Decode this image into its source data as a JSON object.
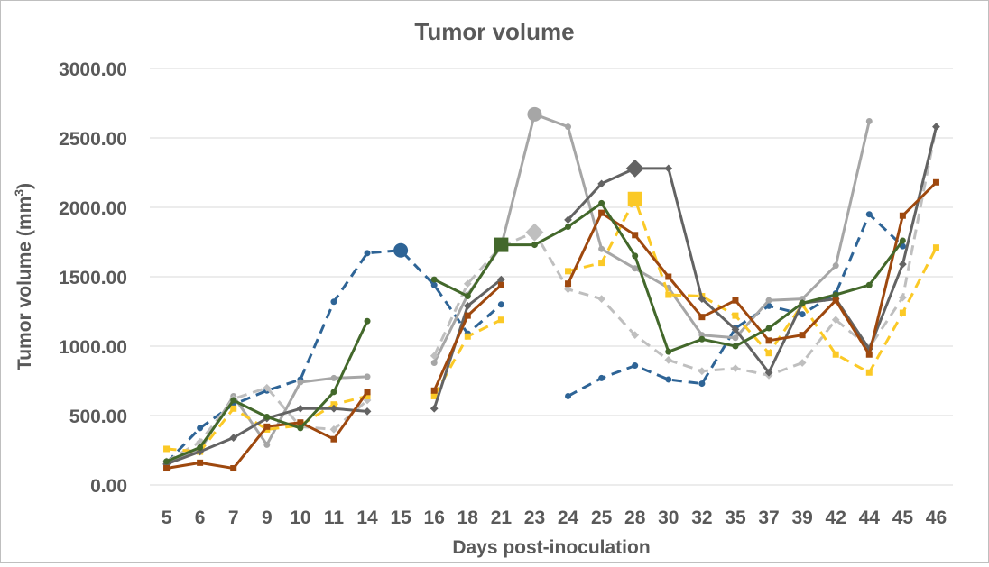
{
  "chart_data": {
    "type": "line",
    "title": "Tumor volume",
    "xlabel": "Days post-inoculation",
    "ylabel_main": "Tumor volume (mm",
    "ylabel_sup": "3",
    "ylabel_close": ")",
    "ylim": [
      0,
      3000
    ],
    "y_ticks": [
      "0.00",
      "500.00",
      "1000.00",
      "1500.00",
      "2000.00",
      "2500.00",
      "3000.00"
    ],
    "categories": [
      "5",
      "6",
      "7",
      "9",
      "10",
      "11",
      "14",
      "15",
      "16",
      "18",
      "21",
      "23",
      "24",
      "25",
      "28",
      "30",
      "32",
      "35",
      "37",
      "39",
      "42",
      "44",
      "45",
      "46"
    ],
    "grid": true,
    "legend": "none",
    "series": [
      {
        "color": "#2e6496",
        "dash": "dashed",
        "marker": "circle",
        "values": [
          160,
          410,
          580,
          680,
          760,
          1320,
          1670,
          1690,
          1440,
          1090,
          1300,
          null,
          640,
          770,
          860,
          760,
          730,
          1130,
          1290,
          1230,
          1380,
          1950,
          1720,
          null
        ],
        "highlight_index": 7
      },
      {
        "color": "#a6a6a6",
        "dash": "solid",
        "marker": "circle",
        "values": [
          160,
          250,
          640,
          290,
          740,
          770,
          780,
          null,
          880,
          1370,
          1720,
          2670,
          2580,
          1700,
          1560,
          1420,
          1080,
          1060,
          1330,
          1340,
          1580,
          2620,
          null,
          null
        ],
        "highlight_index": 11
      },
      {
        "color": "#bfbfbf",
        "dash": "dashed",
        "marker": "diamond",
        "values": [
          170,
          310,
          620,
          700,
          420,
          400,
          610,
          null,
          930,
          1450,
          1720,
          1820,
          1410,
          1340,
          1080,
          900,
          820,
          840,
          790,
          880,
          1190,
          990,
          1350,
          2580
        ],
        "highlight_index": 11
      },
      {
        "color": "#fbc926",
        "dash": "dashed",
        "marker": "square",
        "values": [
          260,
          240,
          550,
          400,
          430,
          580,
          640,
          null,
          640,
          1070,
          1190,
          null,
          1540,
          1600,
          2060,
          1370,
          1360,
          1220,
          950,
          1300,
          940,
          810,
          1240,
          1710
        ],
        "highlight_index": 14
      },
      {
        "color": "#636363",
        "dash": "solid",
        "marker": "diamond",
        "values": [
          150,
          240,
          340,
          480,
          550,
          550,
          530,
          null,
          550,
          1290,
          1480,
          null,
          1910,
          2170,
          2280,
          2280,
          1340,
          1120,
          810,
          1310,
          1340,
          980,
          1590,
          2580
        ],
        "highlight_index": 14
      },
      {
        "color": "#9e480e",
        "dash": "solid",
        "marker": "square",
        "values": [
          120,
          160,
          120,
          420,
          450,
          330,
          670,
          null,
          680,
          1220,
          1440,
          null,
          1450,
          1960,
          1800,
          1500,
          1210,
          1330,
          1040,
          1080,
          1330,
          940,
          1940,
          2180
        ],
        "highlight_index": -1
      },
      {
        "color": "#43682b",
        "dash": "solid",
        "marker": "circle",
        "values": [
          170,
          270,
          610,
          490,
          410,
          670,
          1180,
          null,
          1480,
          1360,
          1730,
          1730,
          1860,
          2030,
          1650,
          960,
          1050,
          1000,
          1130,
          1310,
          1370,
          1440,
          1760,
          null
        ],
        "highlight_index": 10,
        "highlight_marker": "square"
      }
    ]
  }
}
